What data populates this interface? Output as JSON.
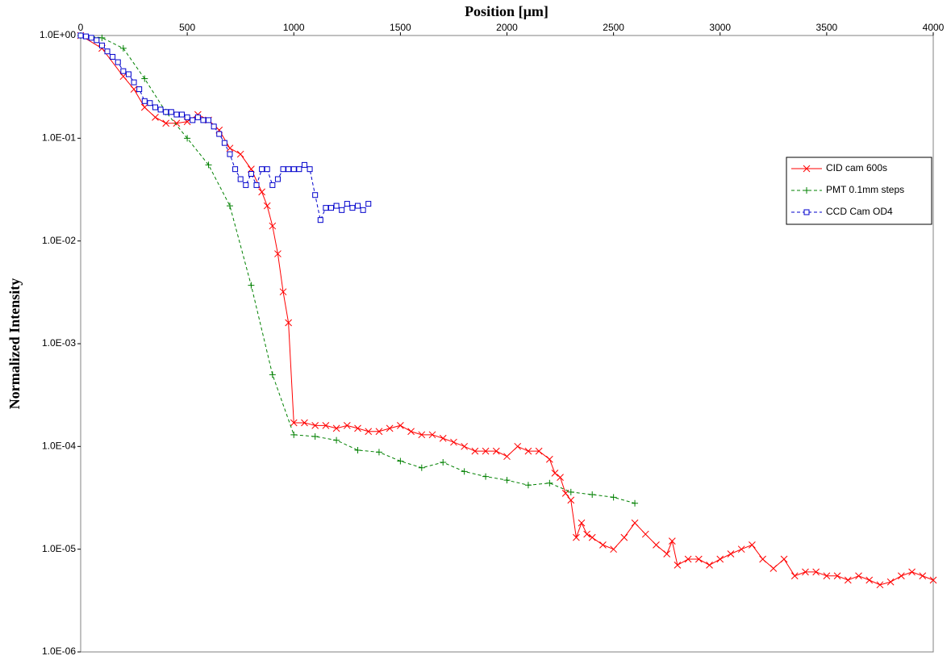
{
  "chart_data": {
    "type": "line",
    "xlabel": "Position [µm]",
    "ylabel": "Normalized Intensity",
    "xlim": [
      0,
      4000
    ],
    "xticks": [
      0,
      500,
      1000,
      1500,
      2000,
      2500,
      3000,
      3500,
      4000
    ],
    "ylim": [
      1e-06,
      1
    ],
    "yscale": "log",
    "yticks": [
      {
        "value": 1,
        "label": "1.0E+00"
      },
      {
        "value": 0.1,
        "label": "1.0E-01"
      },
      {
        "value": 0.01,
        "label": "1.0E-02"
      },
      {
        "value": 0.001,
        "label": "1.0E-03"
      },
      {
        "value": 0.0001,
        "label": "1.0E-04"
      },
      {
        "value": 1e-05,
        "label": "1.0E-05"
      },
      {
        "value": 1e-06,
        "label": "1.0E-06"
      }
    ],
    "legend": "right",
    "series": [
      {
        "name": "CID cam 600s",
        "color": "#ff0000",
        "marker": "x",
        "linestyle": "solid",
        "x": [
          0,
          100,
          200,
          250,
          300,
          350,
          400,
          450,
          500,
          550,
          600,
          650,
          700,
          750,
          800,
          850,
          875,
          900,
          925,
          950,
          975,
          1000,
          1050,
          1100,
          1150,
          1200,
          1250,
          1300,
          1350,
          1400,
          1450,
          1500,
          1550,
          1600,
          1650,
          1700,
          1750,
          1800,
          1850,
          1900,
          1950,
          2000,
          2050,
          2100,
          2150,
          2200,
          2225,
          2250,
          2275,
          2300,
          2325,
          2350,
          2375,
          2400,
          2450,
          2500,
          2550,
          2600,
          2650,
          2700,
          2750,
          2775,
          2800,
          2850,
          2900,
          2950,
          3000,
          3050,
          3100,
          3150,
          3200,
          3250,
          3300,
          3350,
          3400,
          3450,
          3500,
          3550,
          3600,
          3650,
          3700,
          3750,
          3800,
          3850,
          3900,
          3950,
          4000
        ],
        "values": [
          1.0,
          0.75,
          0.4,
          0.3,
          0.2,
          0.16,
          0.14,
          0.14,
          0.145,
          0.17,
          0.15,
          0.12,
          0.08,
          0.07,
          0.05,
          0.03,
          0.022,
          0.014,
          0.0075,
          0.0032,
          0.0016,
          0.00017,
          0.00017,
          0.00016,
          0.00016,
          0.00015,
          0.00016,
          0.00015,
          0.00014,
          0.00014,
          0.00015,
          0.00016,
          0.00014,
          0.00013,
          0.00013,
          0.00012,
          0.00011,
          0.0001,
          9e-05,
          9e-05,
          9e-05,
          8e-05,
          0.0001,
          9e-05,
          9e-05,
          7.5e-05,
          5.5e-05,
          5e-05,
          3.5e-05,
          3e-05,
          1.3e-05,
          1.8e-05,
          1.4e-05,
          1.3e-05,
          1.1e-05,
          1e-05,
          1.3e-05,
          1.8e-05,
          1.4e-05,
          1.1e-05,
          9e-06,
          1.2e-05,
          7e-06,
          8e-06,
          8e-06,
          7e-06,
          8e-06,
          9e-06,
          1e-05,
          1.1e-05,
          8e-06,
          6.5e-06,
          8e-06,
          5.5e-06,
          6e-06,
          6e-06,
          5.5e-06,
          5.5e-06,
          5e-06,
          5.5e-06,
          5e-06,
          4.5e-06,
          4.8e-06,
          5.5e-06,
          6e-06,
          5.5e-06,
          5e-06
        ]
      },
      {
        "name": "PMT 0.1mm steps",
        "color": "#008000",
        "marker": "+",
        "linestyle": "dashed",
        "x": [
          0,
          100,
          200,
          300,
          400,
          500,
          600,
          700,
          800,
          900,
          1000,
          1100,
          1200,
          1300,
          1400,
          1500,
          1600,
          1700,
          1800,
          1900,
          2000,
          2100,
          2200,
          2300,
          2400,
          2500,
          2600
        ],
        "values": [
          1.0,
          0.95,
          0.75,
          0.38,
          0.18,
          0.1,
          0.055,
          0.022,
          0.0037,
          0.0005,
          0.00013,
          0.000125,
          0.000115,
          9.2e-05,
          8.8e-05,
          7.2e-05,
          6.2e-05,
          7e-05,
          5.7e-05,
          5.1e-05,
          4.7e-05,
          4.2e-05,
          4.4e-05,
          3.6e-05,
          3.4e-05,
          3.2e-05,
          2.8e-05
        ]
      },
      {
        "name": "CCD Cam OD4",
        "color": "#0000cc",
        "marker": "square",
        "linestyle": "dashed",
        "x": [
          0,
          25,
          50,
          75,
          100,
          125,
          150,
          175,
          200,
          225,
          250,
          275,
          300,
          325,
          350,
          375,
          400,
          425,
          450,
          475,
          500,
          525,
          550,
          575,
          600,
          625,
          650,
          675,
          700,
          725,
          750,
          775,
          800,
          825,
          850,
          875,
          900,
          925,
          950,
          975,
          1000,
          1025,
          1050,
          1075,
          1100,
          1125,
          1150,
          1175,
          1200,
          1225,
          1250,
          1275,
          1300,
          1325,
          1350
        ],
        "values": [
          1.0,
          0.98,
          0.95,
          0.9,
          0.8,
          0.7,
          0.62,
          0.55,
          0.45,
          0.42,
          0.35,
          0.3,
          0.23,
          0.22,
          0.2,
          0.19,
          0.18,
          0.18,
          0.17,
          0.17,
          0.16,
          0.15,
          0.16,
          0.15,
          0.15,
          0.13,
          0.11,
          0.09,
          0.07,
          0.05,
          0.04,
          0.035,
          0.045,
          0.035,
          0.05,
          0.05,
          0.035,
          0.04,
          0.05,
          0.05,
          0.05,
          0.05,
          0.055,
          0.05,
          0.028,
          0.016,
          0.021,
          0.021,
          0.022,
          0.02,
          0.023,
          0.021,
          0.022,
          0.02,
          0.023
        ]
      }
    ]
  }
}
